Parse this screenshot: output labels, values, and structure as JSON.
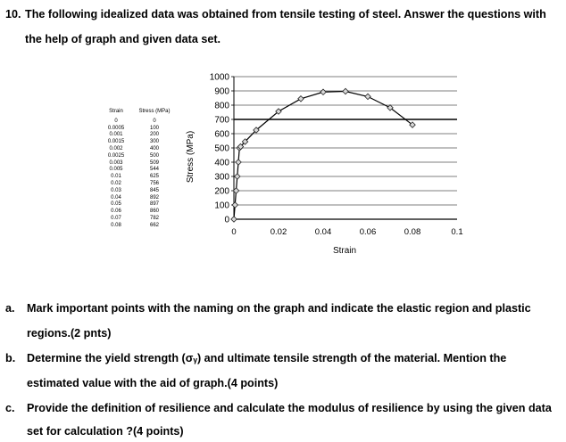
{
  "question": {
    "number": "10.",
    "line1": "The following idealized data was obtained from tensile testing of steel. Answer the questions with",
    "line2": "the help of graph and given data set."
  },
  "table": {
    "headers": [
      "Strain",
      "Stress (MPa)"
    ],
    "rows": [
      [
        "0",
        "0"
      ],
      [
        "0.0005",
        "100"
      ],
      [
        "0.001",
        "200"
      ],
      [
        "0.0015",
        "300"
      ],
      [
        "0.002",
        "400"
      ],
      [
        "0.0025",
        "500"
      ],
      [
        "0.003",
        "509"
      ],
      [
        "0.005",
        "544"
      ],
      [
        "0.01",
        "625"
      ],
      [
        "0.02",
        "756"
      ],
      [
        "0.03",
        "845"
      ],
      [
        "0.04",
        "892"
      ],
      [
        "0.05",
        "897"
      ],
      [
        "0.06",
        "860"
      ],
      [
        "0.07",
        "782"
      ],
      [
        "0.08",
        "662"
      ]
    ]
  },
  "chart_data": {
    "type": "line",
    "xlabel": "Strain",
    "ylabel": "Stress (MPa)",
    "xlim": [
      0,
      0.1
    ],
    "ylim": [
      0,
      1000
    ],
    "x_ticks": [
      "0",
      "0.02",
      "0.04",
      "0.06",
      "0.08",
      "0.1"
    ],
    "y_ticks": [
      "0",
      "100",
      "200",
      "300",
      "400",
      "500",
      "600",
      "700",
      "800",
      "900",
      "1000"
    ],
    "grid": "horizontal",
    "x": [
      0,
      0.0005,
      0.001,
      0.0015,
      0.002,
      0.0025,
      0.003,
      0.005,
      0.01,
      0.02,
      0.03,
      0.04,
      0.05,
      0.06,
      0.07,
      0.08
    ],
    "y": [
      0,
      100,
      200,
      300,
      400,
      500,
      509,
      544,
      625,
      756,
      845,
      892,
      897,
      860,
      782,
      662
    ]
  },
  "parts": [
    {
      "letter": "a.",
      "line1": "Mark important points with the naming on the graph and indicate the elastic region and plastic",
      "line2": "regions.(2 pnts)"
    },
    {
      "letter": "b.",
      "line1": "Determine the yield strength (σᵧ) and ultimate tensile strength of the material. Mention the",
      "line2": "estimated value with the aid of graph.(4 points)"
    },
    {
      "letter": "c.",
      "line1": "Provide the definition of resilience and calculate the modulus of resilience by using the given data",
      "line2": "set for calculation ?(4 points)"
    }
  ]
}
